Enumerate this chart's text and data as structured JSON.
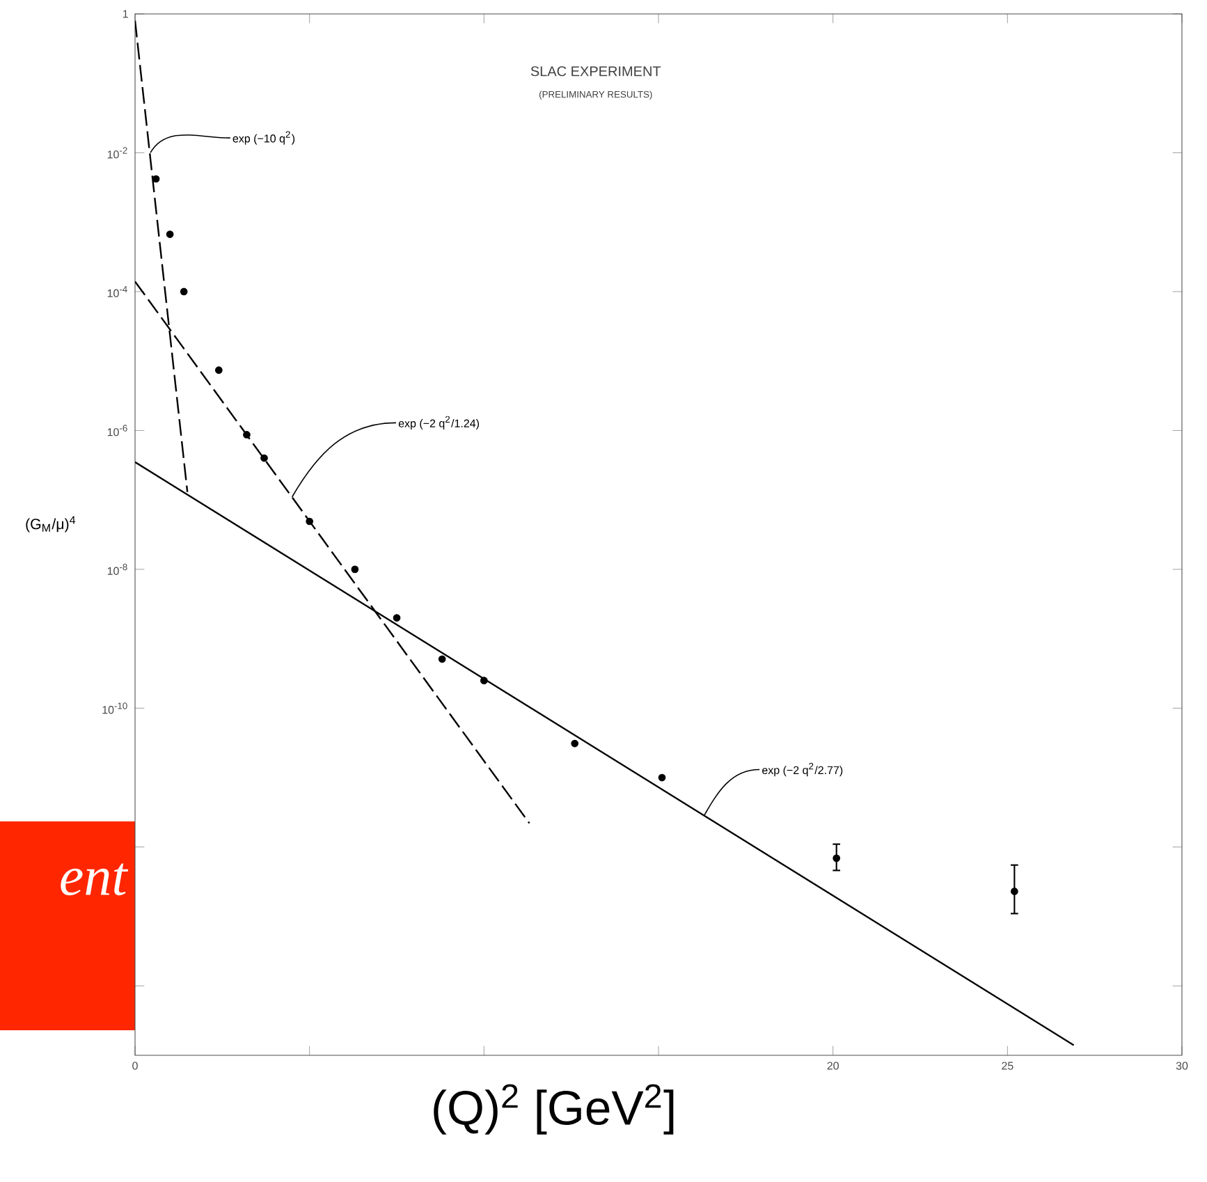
{
  "chart_data": {
    "type": "scatter",
    "title": "SLAC EXPERIMENT",
    "subtitle": "(PRELIMINARY RESULTS)",
    "xlabel": "(Q)$^{2}$ [GeV$^{2}$]",
    "ylabel": "(G$_{M}$/μ)$^{4}$",
    "log": "y",
    "grid": false,
    "xlim": [
      0,
      30
    ],
    "ylim": [
      1e-15,
      1
    ],
    "xticks": [
      0,
      {
        "value": 5,
        "label": null
      },
      {
        "value": 10,
        "label": null
      },
      {
        "value": 15,
        "label": null
      },
      20,
      25,
      30
    ],
    "yticks": [
      1,
      {
        "value": 0.01,
        "label": "10$^{-2}$"
      },
      {
        "value": 0.0001,
        "label": "10$^{-4}$"
      },
      {
        "value": 1e-06,
        "label": "10$^{-6}$"
      },
      {
        "value": 1e-08,
        "label": "10$^{-8}$"
      },
      {
        "value": 1e-10,
        "label": "10$^{-10}$"
      },
      {
        "value": 1e-12,
        "label": null
      },
      {
        "value": 1e-14,
        "label": null
      }
    ],
    "series": [
      {
        "color": "#000000",
        "marker": "circle",
        "x": [
          0.6,
          1.0,
          1.4,
          2.4,
          3.2,
          3.7,
          5.0,
          6.3,
          7.5,
          8.8,
          10.0,
          12.6,
          15.1,
          20.1,
          25.2
        ],
        "values": [
          0.0042,
          0.00067,
          0.0001,
          7.4e-06,
          8.7e-07,
          4e-07,
          4.9e-08,
          1e-08,
          2e-09,
          5.1e-10,
          2.5e-10,
          3.1e-11,
          1e-11,
          6.9e-13,
          2.3e-13
        ],
        "errors": [
          null,
          null,
          null,
          null,
          null,
          null,
          null,
          null,
          null,
          null,
          null,
          null,
          null,
          [
            4.6e-13,
            1.1e-12
          ],
          [
            1.1e-13,
            5.5e-13
          ]
        ]
      },
      {
        "type": "line",
        "color": "#000000",
        "marker": "none",
        "line_style": "dashed",
        "x": [
          0,
          1.5
        ],
        "values": [
          0.8,
          1.3e-07
        ]
      },
      {
        "type": "line",
        "color": "#000000",
        "marker": "none",
        "line_style": "dashed",
        "x": [
          0,
          11.3
        ],
        "values": [
          0.00014,
          2.2e-12
        ]
      },
      {
        "type": "line",
        "color": "#000000",
        "marker": "none",
        "line_style": "solid",
        "x": [
          0,
          26.9
        ],
        "values": [
          3.5e-07,
          1.4e-15
        ]
      }
    ],
    "annotations": [
      {
        "text": "exp (−10 q$^{2}$)",
        "x": 0.44,
        "y": 0.01
      },
      {
        "text": "exp (−2 q$^{2}$/1.24)",
        "x": 4.5,
        "y": 1.1e-07
      },
      {
        "text": "exp (−2 q$^{2}$/2.77)",
        "x": 16.3,
        "y": 2.8e-12
      },
      "ent"
    ]
  }
}
